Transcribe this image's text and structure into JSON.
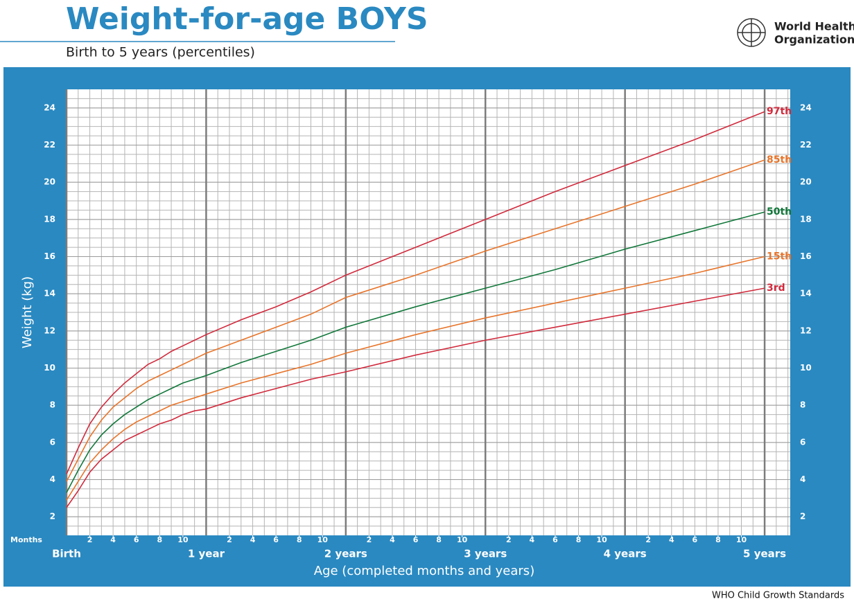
{
  "header": {
    "title": "Weight-for-age BOYS",
    "subtitle": "Birth to 5 years (percentiles)",
    "organization": [
      "World Health",
      "Organization"
    ]
  },
  "footer": "WHO Child Growth Standards",
  "chart_data": {
    "type": "line",
    "x_label": "Age (completed months and years)",
    "y_label": "Weight (kg)",
    "x_minor_label": "Months",
    "x": [
      0,
      1,
      2,
      3,
      4,
      5,
      6,
      7,
      8,
      9,
      10,
      11,
      12,
      15,
      18,
      21,
      24,
      30,
      36,
      42,
      48,
      54,
      60
    ],
    "series": [
      {
        "name": "97th",
        "color": "#d12a3c",
        "values": [
          4.3,
          5.7,
          7.0,
          7.9,
          8.6,
          9.2,
          9.7,
          10.2,
          10.5,
          10.9,
          11.2,
          11.5,
          11.8,
          12.6,
          13.3,
          14.1,
          15.0,
          16.5,
          18.0,
          19.5,
          20.9,
          22.3,
          23.8
        ]
      },
      {
        "name": "85th",
        "color": "#e8742a",
        "values": [
          3.9,
          5.1,
          6.3,
          7.2,
          7.9,
          8.4,
          8.9,
          9.3,
          9.6,
          9.9,
          10.2,
          10.5,
          10.8,
          11.5,
          12.2,
          12.9,
          13.8,
          15.0,
          16.3,
          17.5,
          18.7,
          19.9,
          21.2
        ]
      },
      {
        "name": "50th",
        "color": "#11773a",
        "values": [
          3.3,
          4.5,
          5.6,
          6.4,
          7.0,
          7.5,
          7.9,
          8.3,
          8.6,
          8.9,
          9.2,
          9.4,
          9.6,
          10.3,
          10.9,
          11.5,
          12.2,
          13.3,
          14.3,
          15.3,
          16.4,
          17.4,
          18.4
        ]
      },
      {
        "name": "15th",
        "color": "#e8742a",
        "values": [
          2.9,
          3.9,
          4.9,
          5.6,
          6.2,
          6.7,
          7.1,
          7.4,
          7.7,
          8.0,
          8.2,
          8.4,
          8.6,
          9.2,
          9.7,
          10.2,
          10.8,
          11.8,
          12.7,
          13.5,
          14.3,
          15.1,
          16.0
        ]
      },
      {
        "name": "3rd",
        "color": "#d12a3c",
        "values": [
          2.5,
          3.4,
          4.4,
          5.1,
          5.6,
          6.1,
          6.4,
          6.7,
          7.0,
          7.2,
          7.5,
          7.7,
          7.8,
          8.4,
          8.9,
          9.4,
          9.8,
          10.7,
          11.5,
          12.2,
          12.9,
          13.6,
          14.3
        ]
      }
    ],
    "xlim": [
      0,
      62.2
    ],
    "ylim": [
      1,
      25
    ],
    "xticks": [
      {
        "value": 0,
        "label": "Birth"
      },
      {
        "value": 12,
        "label": "1 year"
      },
      {
        "value": 24,
        "label": "2 years"
      },
      {
        "value": 36,
        "label": "3 years"
      },
      {
        "value": 48,
        "label": "4 years"
      },
      {
        "value": 60,
        "label": "5 years"
      }
    ],
    "minor_xticks": [
      2,
      4,
      6,
      8,
      10,
      {
        "value": 14,
        "label": "2"
      },
      {
        "value": 16,
        "label": "4"
      },
      {
        "value": 18,
        "label": "6"
      },
      {
        "value": 20,
        "label": "8"
      },
      {
        "value": 22,
        "label": "10"
      },
      {
        "value": 26,
        "label": "2"
      },
      {
        "value": 28,
        "label": "4"
      },
      {
        "value": 30,
        "label": "6"
      },
      {
        "value": 32,
        "label": "8"
      },
      {
        "value": 34,
        "label": "10"
      },
      {
        "value": 38,
        "label": "2"
      },
      {
        "value": 40,
        "label": "4"
      },
      {
        "value": 42,
        "label": "6"
      },
      {
        "value": 44,
        "label": "8"
      },
      {
        "value": 46,
        "label": "10"
      },
      {
        "value": 50,
        "label": "2"
      },
      {
        "value": 52,
        "label": "4"
      },
      {
        "value": 54,
        "label": "6"
      },
      {
        "value": 56,
        "label": "8"
      },
      {
        "value": 58,
        "label": "10"
      }
    ],
    "yticks": [
      2,
      4,
      6,
      8,
      10,
      12,
      14,
      16,
      18,
      20,
      22,
      24
    ],
    "x_grid_step": 1,
    "y_grid_step": 0.5,
    "grid": true,
    "panel_color": "#2a89c1"
  }
}
